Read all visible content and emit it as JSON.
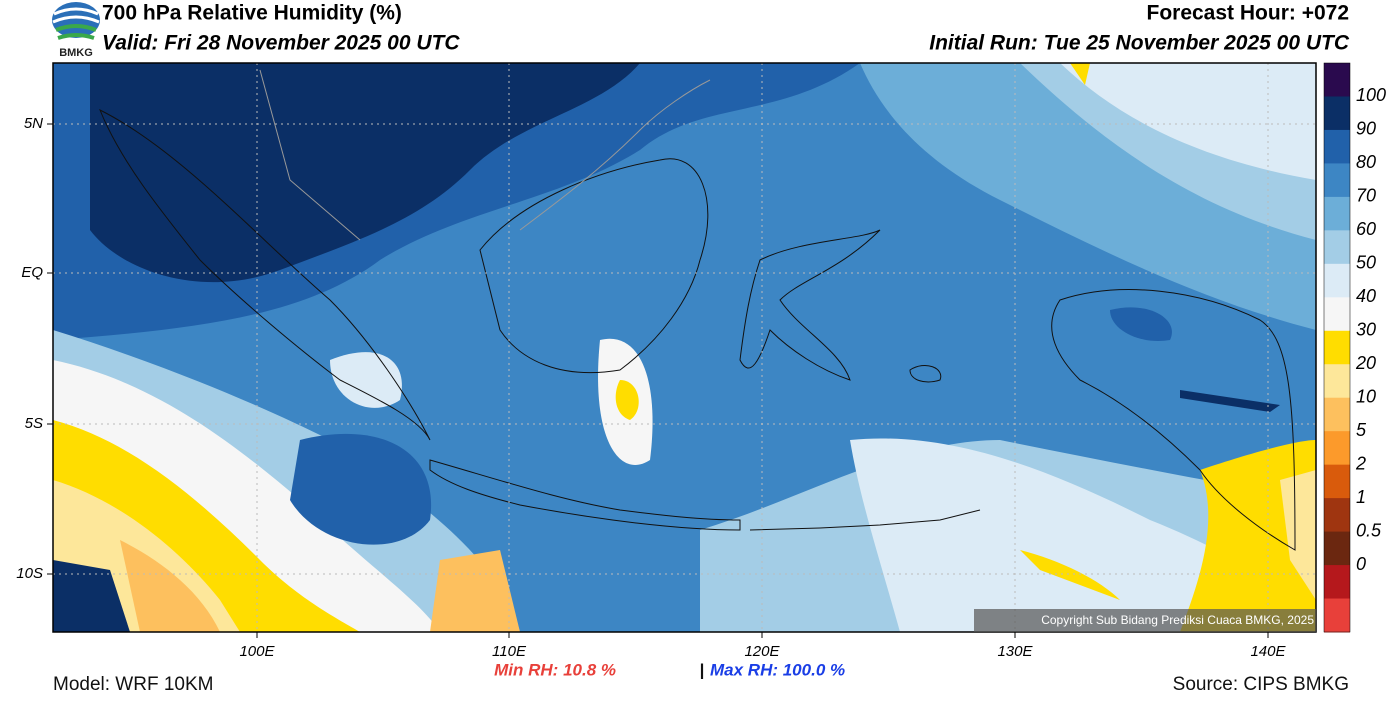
{
  "header": {
    "title": "700 hPa Relative Humidity (%)",
    "valid": "Valid: Fri 28 November 2025 00 UTC",
    "forecast_hour": "Forecast Hour: +072",
    "initial_run": "Initial Run: Tue 25 November 2025 00 UTC",
    "logo_text": "BMKG"
  },
  "map": {
    "lat_labels": [
      "5N",
      "EQ",
      "5S",
      "10S"
    ],
    "lon_labels": [
      "100E",
      "110E",
      "120E",
      "130E",
      "140E"
    ],
    "copyright": "Copyright Sub Bidang Prediksi Cuaca BMKG, 2025"
  },
  "colorbar": {
    "colors": [
      "#2a0a4e",
      "#0b2f66",
      "#2161aa",
      "#3d86c4",
      "#6caed8",
      "#a3cde6",
      "#dcebf6",
      "#f6f6f6",
      "#ffdd00",
      "#fde79a",
      "#fdc05e",
      "#fc9a2b",
      "#d95b0c",
      "#9f3510",
      "#6b2710",
      "#b5181c",
      "#e8403a"
    ],
    "labels": [
      "100",
      "90",
      "80",
      "70",
      "60",
      "50",
      "40",
      "30",
      "20",
      "10",
      "5",
      "2",
      "1",
      "0.5",
      "0"
    ]
  },
  "footer": {
    "min_rh": "Min RH:  10.8 %",
    "separator": "|",
    "max_rh": "Max RH: 100.0 %",
    "model": "Model: WRF 10KM",
    "source": "Source: CIPS BMKG"
  }
}
